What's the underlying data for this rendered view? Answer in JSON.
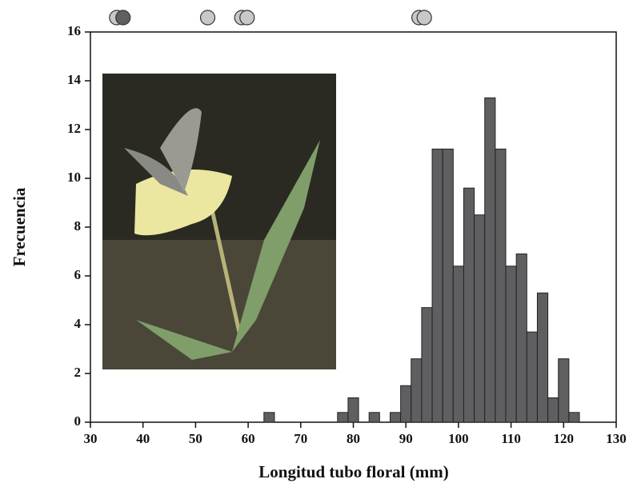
{
  "chart_data": {
    "type": "histogram",
    "xlabel": "Longitud tubo floral (mm)",
    "ylabel": "Frecuencia",
    "bins": [
      63,
      65,
      67,
      69,
      71,
      73,
      75,
      77,
      79,
      81,
      83,
      85,
      87,
      89,
      91,
      93,
      95,
      97,
      99,
      101,
      103,
      105,
      107,
      109,
      111,
      113,
      115,
      117,
      119,
      121,
      123
    ],
    "values": [
      0.4,
      0,
      0,
      0,
      0,
      0,
      0,
      0.4,
      1.0,
      0,
      0.4,
      0,
      0.4,
      1.5,
      2.6,
      4.7,
      11.2,
      11.2,
      6.4,
      9.6,
      8.5,
      13.3,
      11.2,
      6.4,
      6.9,
      3.7,
      5.3,
      1.0,
      2.6,
      0.4
    ],
    "color": "#5f5f62",
    "xlim": [
      30,
      130
    ],
    "xticks": [
      30,
      40,
      50,
      60,
      70,
      80,
      90,
      100,
      110,
      120,
      130
    ],
    "ylim": [
      0,
      16
    ],
    "yticks": [
      0,
      2,
      4,
      6,
      8,
      10,
      12,
      14,
      16
    ],
    "markers": {
      "x": [
        35,
        36.2,
        52.3,
        58.8,
        59.8,
        92.5,
        93.5
      ],
      "colors": [
        "#c8c8c8",
        "#606060",
        "#c8c8c8",
        "#c8c8c8",
        "#c8c8c8",
        "#c8c8c8",
        "#c8c8c8"
      ]
    }
  }
}
